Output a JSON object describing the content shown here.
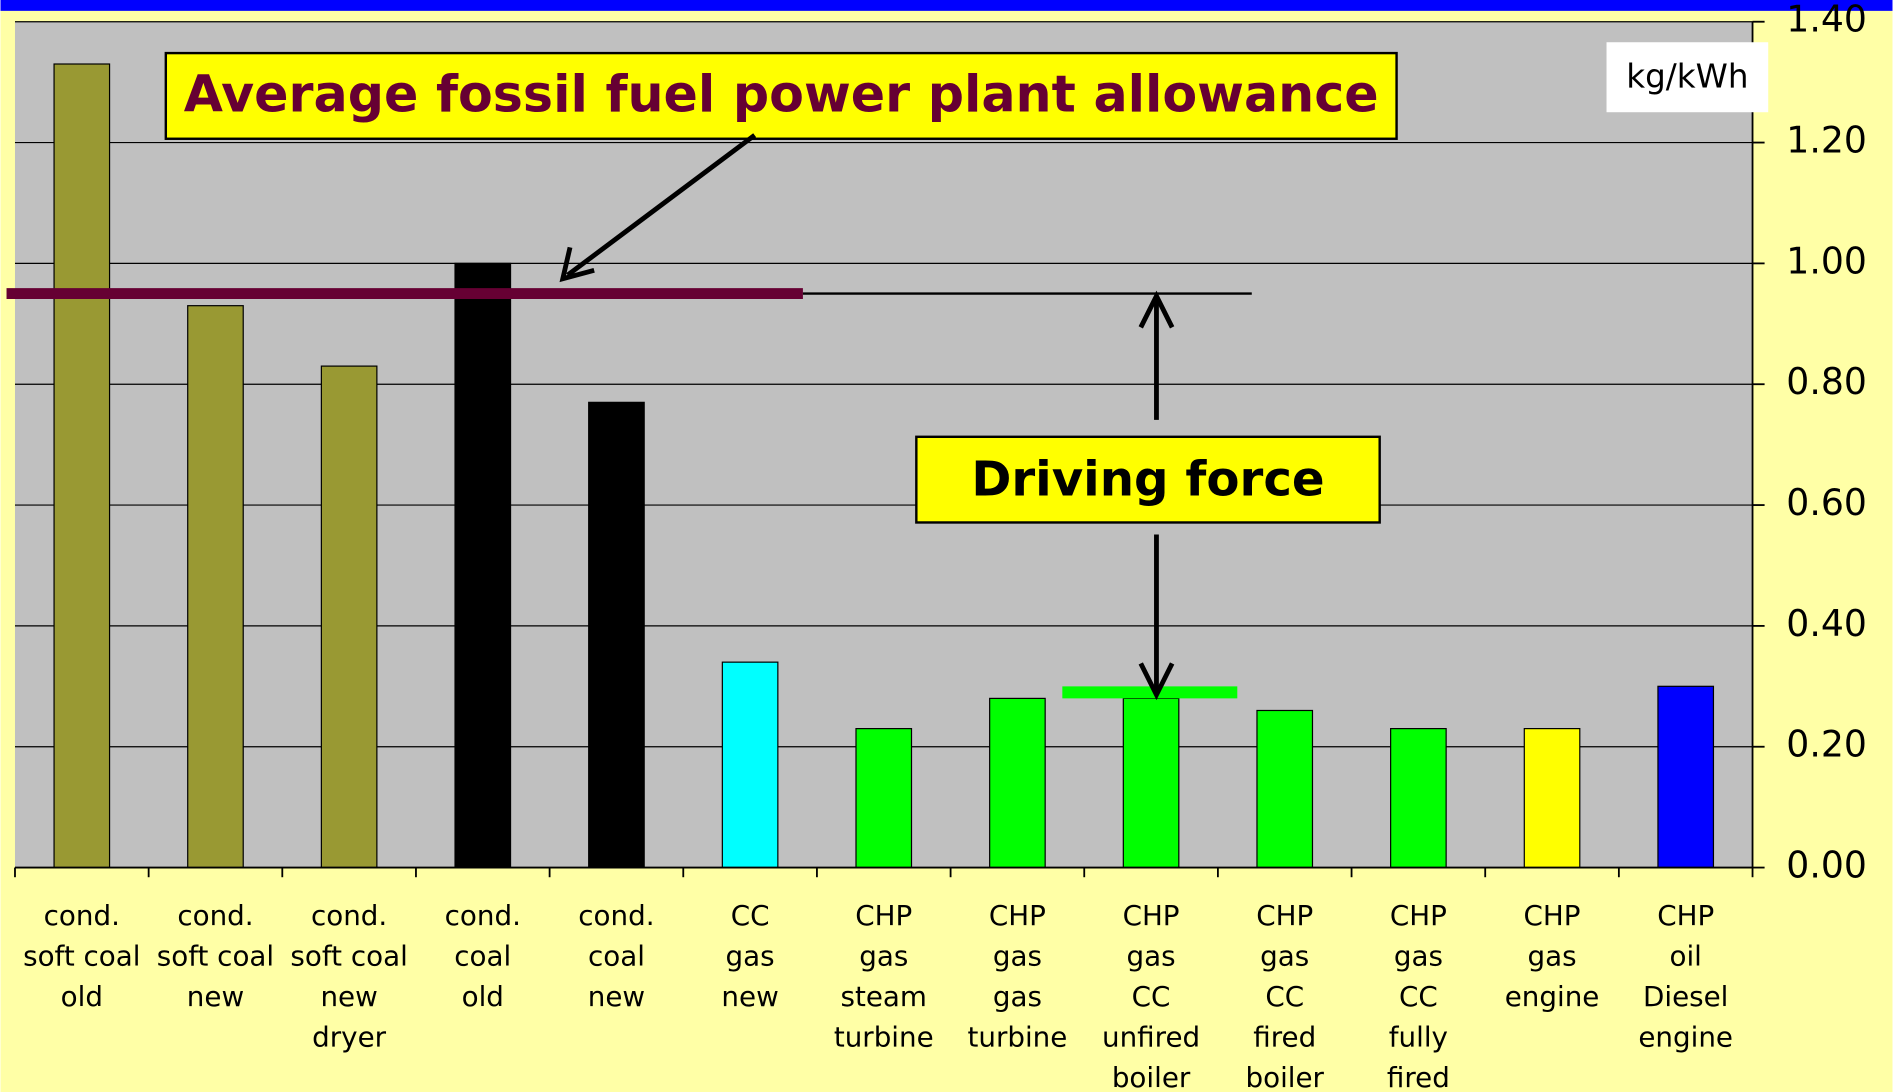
{
  "chart_data": {
    "type": "bar",
    "title": "Average fossil fuel power plant allowance",
    "annotation": "Driving force",
    "unit_label": "kg/kWh",
    "categories": [
      [
        "cond.",
        "soft coal",
        "old"
      ],
      [
        "cond.",
        "soft coal",
        "new"
      ],
      [
        "cond.",
        "soft coal",
        "new",
        "dryer"
      ],
      [
        "cond.",
        "coal",
        "old"
      ],
      [
        "cond.",
        "coal",
        "new"
      ],
      [
        "CC",
        "gas",
        "new"
      ],
      [
        "CHP",
        "gas",
        "steam",
        "turbine"
      ],
      [
        "CHP",
        "gas",
        "gas",
        "turbine"
      ],
      [
        "CHP",
        "gas",
        "CC",
        "unfired",
        "boiler"
      ],
      [
        "CHP",
        "gas",
        "CC",
        "fired",
        "boiler"
      ],
      [
        "CHP",
        "gas",
        "CC",
        "fully",
        "fired"
      ],
      [
        "CHP",
        "gas",
        "engine"
      ],
      [
        "CHP",
        "oil",
        "Diesel",
        "engine"
      ]
    ],
    "values": [
      1.33,
      0.93,
      0.83,
      1.0,
      0.77,
      0.34,
      0.23,
      0.28,
      0.28,
      0.26,
      0.23,
      0.23,
      0.3
    ],
    "colors": [
      "#999933",
      "#999933",
      "#999933",
      "#000000",
      "#000000",
      "#00ffff",
      "#00ff00",
      "#00ff00",
      "#00ff00",
      "#00ff00",
      "#00ff00",
      "#ffff00",
      "#0000ff"
    ],
    "reference_lines": [
      {
        "value": 0.95,
        "color": "#660033"
      },
      {
        "value": 0.29,
        "color": "#00ff00"
      }
    ],
    "ylim": [
      0,
      1.4
    ],
    "yticks": [
      {
        "value": 0,
        "label": "0.00"
      },
      {
        "value": 0.2,
        "label": "0.20"
      },
      {
        "value": 0.4,
        "label": "0.40"
      },
      {
        "value": 0.6,
        "label": "0.60"
      },
      {
        "value": 0.8,
        "label": "0.80"
      },
      {
        "value": 1.0,
        "label": "1.00"
      },
      {
        "value": 1.2,
        "label": "1.20"
      },
      {
        "value": 1.4,
        "label": "1.40"
      }
    ],
    "y_axis_side": "right",
    "grid": true
  }
}
